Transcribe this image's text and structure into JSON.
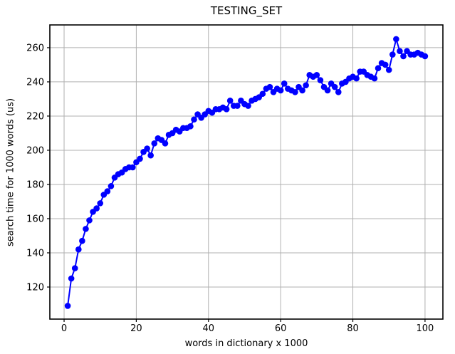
{
  "figure": {
    "background": "#ffffff"
  },
  "chart_data": {
    "type": "line",
    "title": "TESTING_SET",
    "xlabel": "words in dictionary x 1000",
    "ylabel": "search time for 1000 words (us)",
    "legend": null,
    "grid": true,
    "grid_color": "#b0b0b0",
    "line_color": "#0000ff",
    "marker": "circle",
    "marker_color": "#0000ff",
    "axis_color": "#000000",
    "xlim": [
      -3.95,
      104.95
    ],
    "ylim": [
      101.25,
      273.3
    ],
    "xticks": [
      0,
      20,
      40,
      60,
      80,
      100
    ],
    "yticks": [
      120,
      140,
      160,
      180,
      200,
      220,
      240,
      260
    ],
    "x": [
      1,
      2,
      3,
      4,
      5,
      6,
      7,
      8,
      9,
      10,
      11,
      12,
      13,
      14,
      15,
      16,
      17,
      18,
      19,
      20,
      21,
      22,
      23,
      24,
      25,
      26,
      27,
      28,
      29,
      30,
      31,
      32,
      33,
      34,
      35,
      36,
      37,
      38,
      39,
      40,
      41,
      42,
      43,
      44,
      45,
      46,
      47,
      48,
      49,
      50,
      51,
      52,
      53,
      54,
      55,
      56,
      57,
      58,
      59,
      60,
      61,
      62,
      63,
      64,
      65,
      66,
      67,
      68,
      69,
      70,
      71,
      72,
      73,
      74,
      75,
      76,
      77,
      78,
      79,
      80,
      81,
      82,
      83,
      84,
      85,
      86,
      87,
      88,
      89,
      90,
      91,
      92,
      93,
      94,
      95,
      96,
      97,
      98,
      99,
      100
    ],
    "y": [
      109,
      125,
      131,
      142,
      147,
      154,
      159,
      164,
      166,
      169,
      174,
      176,
      179,
      184,
      186,
      187,
      189,
      190,
      190,
      193,
      195,
      199,
      201,
      197,
      204,
      207,
      206,
      204,
      209,
      210,
      212,
      211,
      213,
      213,
      214,
      218,
      221,
      219,
      221,
      223,
      222,
      224,
      224,
      225,
      224,
      229,
      226,
      226,
      229,
      227,
      226,
      229,
      230,
      231,
      233,
      236,
      237,
      234,
      236,
      235,
      239,
      236,
      235,
      234,
      237,
      235,
      238,
      244,
      243,
      244,
      241,
      237,
      235,
      239,
      237,
      234,
      239,
      240,
      242,
      243,
      242,
      246,
      246,
      244,
      243,
      242,
      248,
      251,
      250,
      247,
      256,
      265,
      258,
      255,
      258,
      256,
      256,
      257,
      256,
      255
    ]
  }
}
